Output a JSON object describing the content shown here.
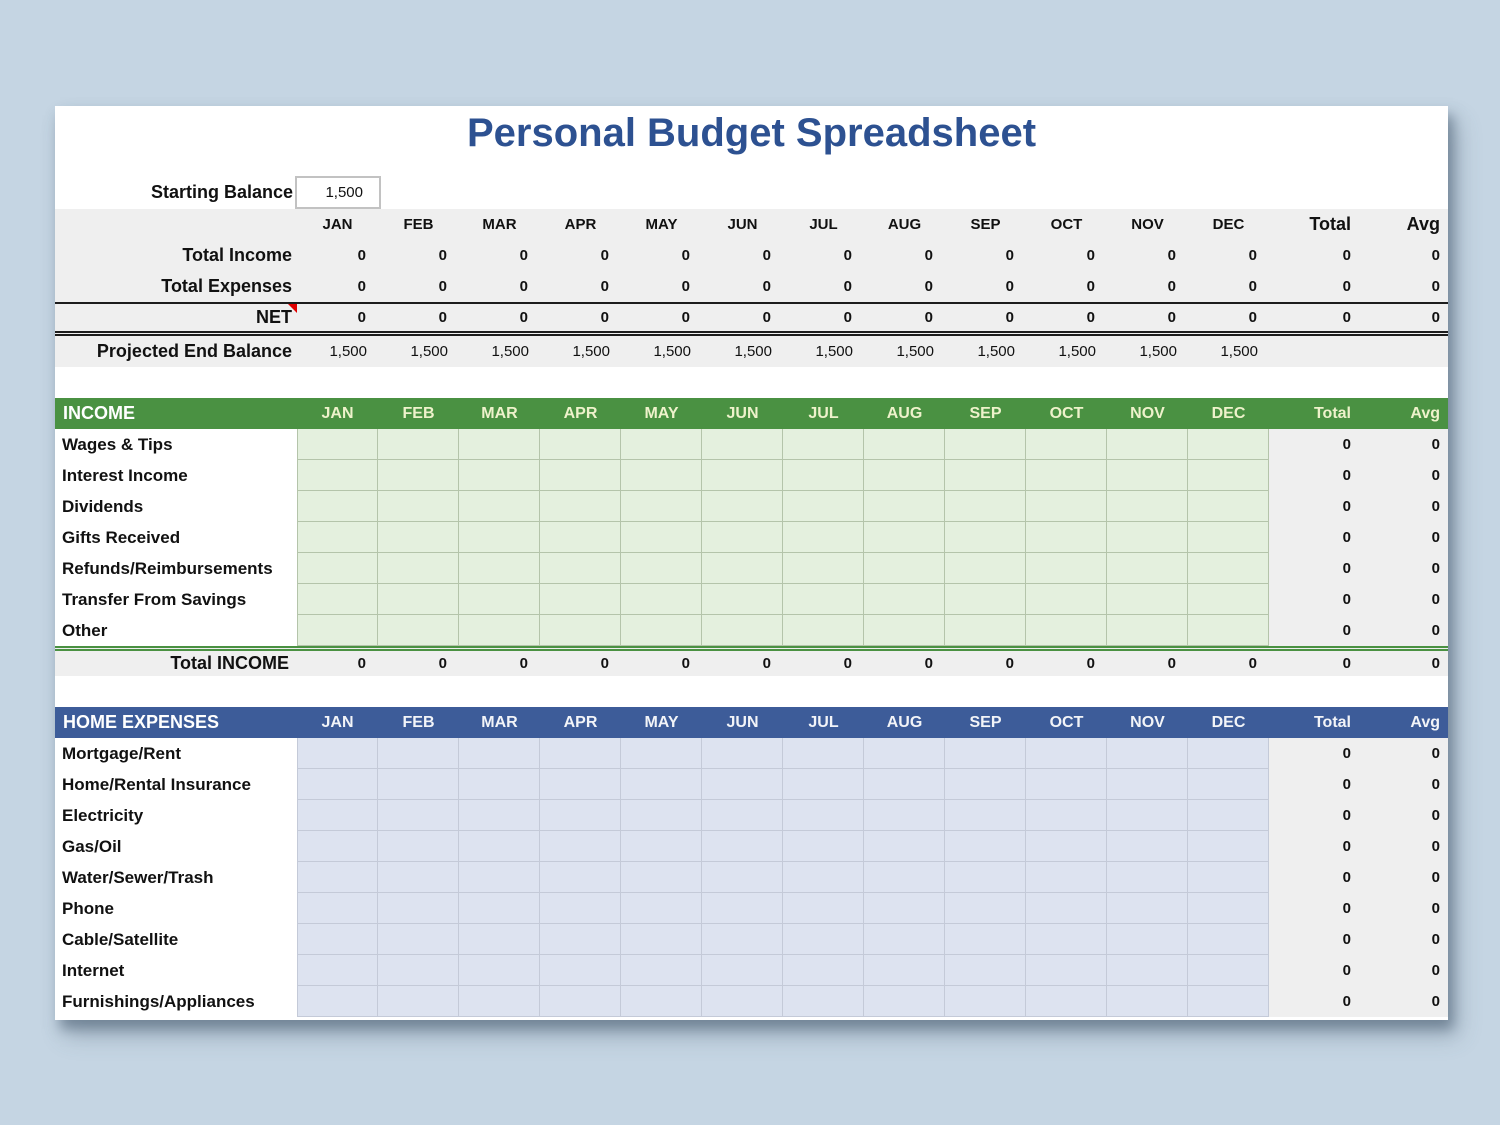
{
  "colors": {
    "page_background": "#c5d5e3",
    "sheet_background": "#ffffff",
    "title": "#2d5191",
    "summary_band": "#efefef",
    "note_indicator": "#e00000",
    "income_header": "#4a9142",
    "income_header_text": "#eef2cb",
    "income_cell": "#e4f0de",
    "income_cell_border": "#b4c4aa",
    "expenses_header": "#3d5c99",
    "expenses_header_text": "#f2f4f8",
    "expenses_cell": "#dde3f0",
    "expenses_cell_border": "#c4cad8"
  },
  "title": "Personal Budget Spreadsheet",
  "months": [
    "JAN",
    "FEB",
    "MAR",
    "APR",
    "MAY",
    "JUN",
    "JUL",
    "AUG",
    "SEP",
    "OCT",
    "NOV",
    "DEC"
  ],
  "total_label": "Total",
  "avg_label": "Avg",
  "starting_balance": {
    "label": "Starting Balance",
    "value": "1,500"
  },
  "summary": {
    "rows": [
      {
        "label": "Total Income",
        "values": [
          "0",
          "0",
          "0",
          "0",
          "0",
          "0",
          "0",
          "0",
          "0",
          "0",
          "0",
          "0"
        ],
        "total": "0",
        "avg": "0"
      },
      {
        "label": "Total Expenses",
        "values": [
          "0",
          "0",
          "0",
          "0",
          "0",
          "0",
          "0",
          "0",
          "0",
          "0",
          "0",
          "0"
        ],
        "total": "0",
        "avg": "0"
      },
      {
        "label": "NET",
        "note": true,
        "values": [
          "0",
          "0",
          "0",
          "0",
          "0",
          "0",
          "0",
          "0",
          "0",
          "0",
          "0",
          "0"
        ],
        "total": "0",
        "avg": "0"
      }
    ],
    "projected": {
      "label": "Projected End Balance",
      "values": [
        "1,500",
        "1,500",
        "1,500",
        "1,500",
        "1,500",
        "1,500",
        "1,500",
        "1,500",
        "1,500",
        "1,500",
        "1,500",
        "1,500"
      ],
      "total": "",
      "avg": ""
    }
  },
  "income": {
    "header": "INCOME",
    "rows": [
      {
        "label": "Wages & Tips",
        "total": "0",
        "avg": "0"
      },
      {
        "label": "Interest Income",
        "total": "0",
        "avg": "0"
      },
      {
        "label": "Dividends",
        "total": "0",
        "avg": "0"
      },
      {
        "label": "Gifts Received",
        "total": "0",
        "avg": "0"
      },
      {
        "label": "Refunds/Reimbursements",
        "total": "0",
        "avg": "0"
      },
      {
        "label": "Transfer From Savings",
        "total": "0",
        "avg": "0"
      },
      {
        "label": "Other",
        "total": "0",
        "avg": "0"
      }
    ],
    "total_row": {
      "label": "Total INCOME",
      "values": [
        "0",
        "0",
        "0",
        "0",
        "0",
        "0",
        "0",
        "0",
        "0",
        "0",
        "0",
        "0"
      ],
      "total": "0",
      "avg": "0"
    }
  },
  "expenses": {
    "header": "HOME EXPENSES",
    "rows": [
      {
        "label": "Mortgage/Rent",
        "total": "0",
        "avg": "0"
      },
      {
        "label": "Home/Rental Insurance",
        "total": "0",
        "avg": "0"
      },
      {
        "label": "Electricity",
        "total": "0",
        "avg": "0"
      },
      {
        "label": "Gas/Oil",
        "total": "0",
        "avg": "0"
      },
      {
        "label": "Water/Sewer/Trash",
        "total": "0",
        "avg": "0"
      },
      {
        "label": "Phone",
        "total": "0",
        "avg": "0"
      },
      {
        "label": "Cable/Satellite",
        "total": "0",
        "avg": "0"
      },
      {
        "label": "Internet",
        "total": "0",
        "avg": "0"
      },
      {
        "label": "Furnishings/Appliances",
        "total": "0",
        "avg": "0"
      }
    ]
  }
}
